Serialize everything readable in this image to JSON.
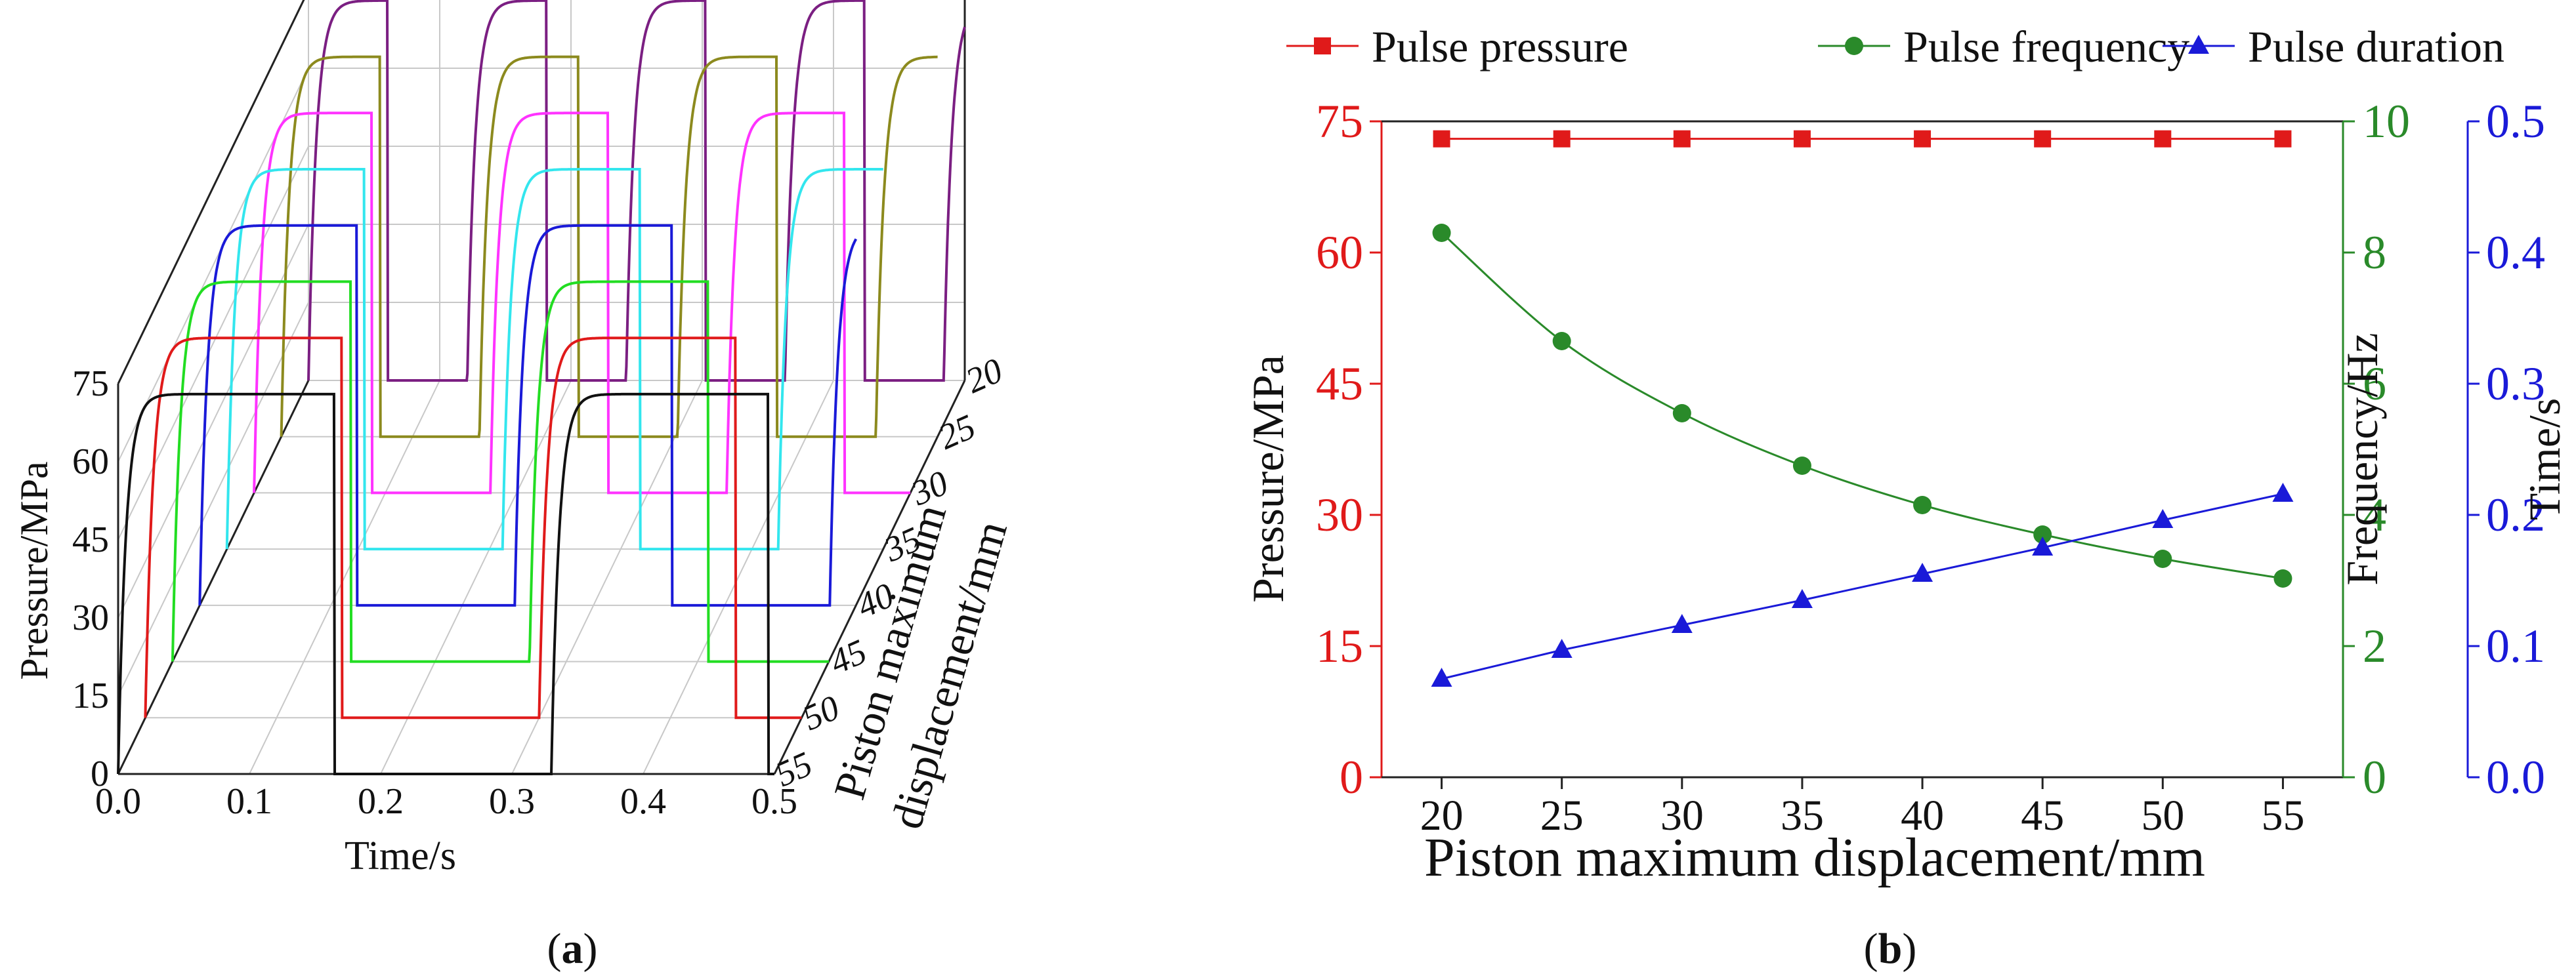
{
  "chart_data": [
    {
      "type": "line",
      "panel_label": "(a)",
      "panel_letter": "a",
      "projection": "3D waterfall",
      "xlabel": "Time/s",
      "ylabel": "Pressure/MPa",
      "zlabel_line1": "Piston maximum",
      "zlabel_line2": "displacement/mm",
      "xlim": [
        0.0,
        0.5
      ],
      "ylim": [
        0,
        75
      ],
      "zlim": [
        20,
        55
      ],
      "x_ticks": [
        "0.0",
        "0.1",
        "0.2",
        "0.3",
        "0.4",
        "0.5"
      ],
      "y_ticks": [
        "0",
        "15",
        "30",
        "45",
        "60",
        "75"
      ],
      "z_ticks": [
        "20",
        "25",
        "30",
        "35",
        "40",
        "45",
        "50",
        "55"
      ],
      "x_tick_values": [
        0.0,
        0.1,
        0.2,
        0.3,
        0.4,
        0.5
      ],
      "y_tick_values": [
        0,
        15,
        30,
        45,
        60,
        75
      ],
      "z_tick_values": [
        20,
        25,
        30,
        35,
        40,
        45,
        50,
        55
      ],
      "pulse_peak_pressure": 73,
      "series": [
        {
          "displacement": 20,
          "color": "#7b1f82",
          "period": 0.121,
          "duty": 0.5
        },
        {
          "displacement": 25,
          "color": "#8c8a1e",
          "period": 0.151,
          "duty": 0.5
        },
        {
          "displacement": 30,
          "color": "#ff33ff",
          "period": 0.18,
          "duty": 0.5
        },
        {
          "displacement": 35,
          "color": "#33e6ee",
          "period": 0.21,
          "duty": 0.5
        },
        {
          "displacement": 40,
          "color": "#1a1ad8",
          "period": 0.24,
          "duty": 0.5
        },
        {
          "displacement": 45,
          "color": "#22dd22",
          "period": 0.272,
          "duty": 0.5
        },
        {
          "displacement": 50,
          "color": "#e01a1a",
          "period": 0.3,
          "duty": 0.5
        },
        {
          "displacement": 55,
          "color": "#111111",
          "period": 0.33,
          "duty": 0.5
        }
      ]
    },
    {
      "type": "line",
      "panel_label": "(b)",
      "panel_letter": "b",
      "xlabel": "Piston maximum displacement/mm",
      "ylabel_left": "Pressure/MPa",
      "ylabel_right1": "Frequency/Hz",
      "ylabel_right2": "Time/s",
      "x": [
        20,
        25,
        30,
        35,
        40,
        45,
        50,
        55
      ],
      "x_ticks": [
        "20",
        "25",
        "30",
        "35",
        "40",
        "45",
        "50",
        "55"
      ],
      "xlim": [
        17.5,
        57.5
      ],
      "y_left_ticks": [
        "0",
        "15",
        "30",
        "45",
        "60",
        "75"
      ],
      "y_left_tick_values": [
        0,
        15,
        30,
        45,
        60,
        75
      ],
      "y_left_lim": [
        0,
        75
      ],
      "y_right1_ticks": [
        "0",
        "2",
        "4",
        "6",
        "8",
        "10"
      ],
      "y_right1_tick_values": [
        0,
        2,
        4,
        6,
        8,
        10
      ],
      "y_right1_lim": [
        0,
        10
      ],
      "y_right2_ticks": [
        "0.0",
        "0.1",
        "0.2",
        "0.3",
        "0.4",
        "0.5"
      ],
      "y_right2_tick_values": [
        0,
        0.1,
        0.2,
        0.3,
        0.4,
        0.5
      ],
      "y_right2_lim": [
        0,
        0.5
      ],
      "legend_position": "top",
      "series": [
        {
          "name": "Pulse pressure",
          "axis": "left",
          "marker": "square",
          "color": "#e01a1a",
          "values": [
            73,
            73,
            73,
            73,
            73,
            73,
            73,
            73
          ]
        },
        {
          "name": "Pulse frequency",
          "axis": "right1",
          "marker": "circle",
          "color": "#2a8a2a",
          "values": [
            8.3,
            6.65,
            5.55,
            4.75,
            4.15,
            3.7,
            3.33,
            3.03
          ]
        },
        {
          "name": "Pulse duration",
          "axis": "right2",
          "marker": "triangle",
          "color": "#1a1ad8",
          "values": [
            0.075,
            0.097,
            0.116,
            0.135,
            0.155,
            0.175,
            0.196,
            0.216
          ]
        }
      ]
    }
  ]
}
